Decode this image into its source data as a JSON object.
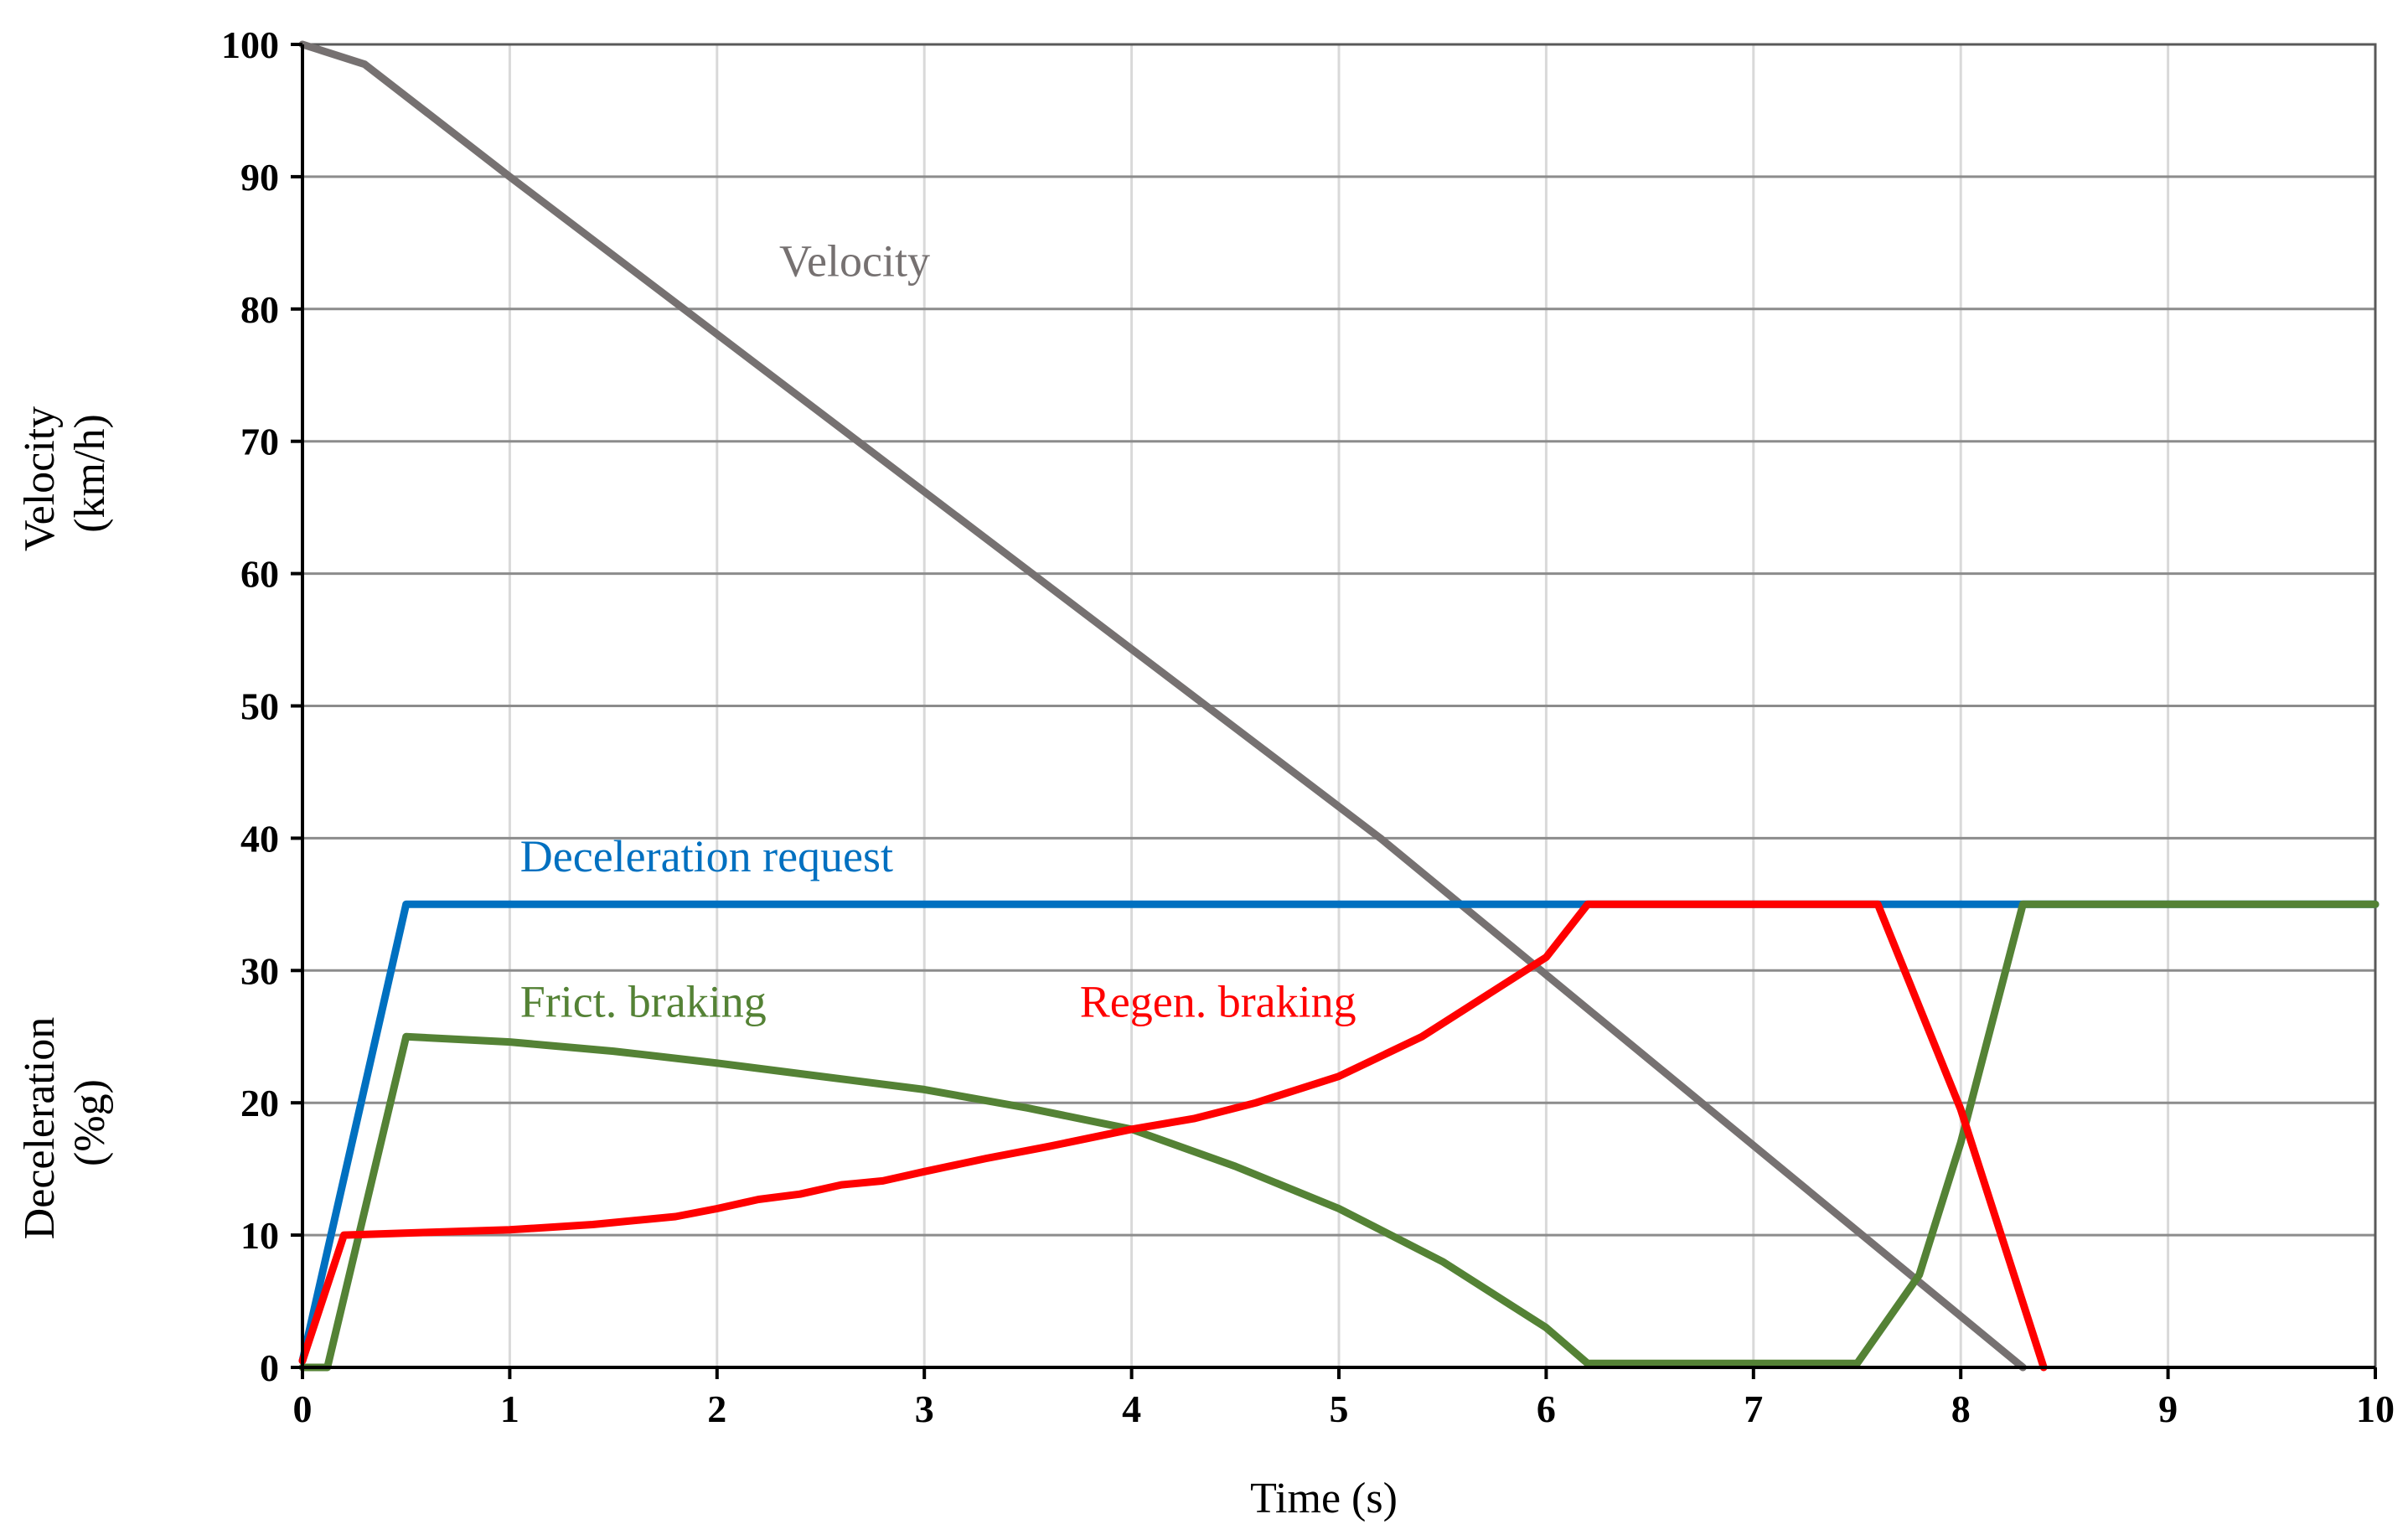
{
  "chart_data": {
    "type": "line",
    "title": "",
    "xlabel": "Time (s)",
    "ylabel_upper": [
      "Velocity",
      "(km/h)"
    ],
    "ylabel_lower": [
      "Deceleration",
      "(%g)"
    ],
    "xlim": [
      0,
      10
    ],
    "ylim": [
      0,
      100
    ],
    "xticks": [
      "0",
      "1",
      "2",
      "3",
      "4",
      "5",
      "6",
      "7",
      "8",
      "9",
      "10"
    ],
    "yticks": [
      "0",
      "10",
      "20",
      "30",
      "40",
      "50",
      "60",
      "70",
      "80",
      "90",
      "100"
    ],
    "grid": true,
    "legend": "inline labels",
    "series": [
      {
        "name": "Velocity",
        "color": "#767171",
        "points": [
          [
            0,
            100
          ],
          [
            0.3,
            98.5
          ],
          [
            1,
            90
          ],
          [
            5.2,
            40
          ],
          [
            8.3,
            0
          ]
        ]
      },
      {
        "name": "Deceleration request",
        "color": "#0070c0",
        "points": [
          [
            0,
            0.5
          ],
          [
            0.5,
            35
          ],
          [
            8.3,
            35
          ],
          [
            10,
            35
          ]
        ]
      },
      {
        "name": "Frict. braking",
        "color": "#548235",
        "points": [
          [
            0,
            0
          ],
          [
            0.12,
            0
          ],
          [
            0.5,
            25
          ],
          [
            1,
            24.6
          ],
          [
            1.5,
            23.9
          ],
          [
            2,
            23
          ],
          [
            2.5,
            22
          ],
          [
            3,
            21
          ],
          [
            3.5,
            19.6
          ],
          [
            4,
            18
          ],
          [
            4.5,
            15.2
          ],
          [
            5,
            12
          ],
          [
            5.5,
            8
          ],
          [
            6,
            3
          ],
          [
            6.2,
            0.3
          ],
          [
            7.5,
            0.3
          ],
          [
            7.8,
            7
          ],
          [
            8,
            17
          ],
          [
            8.3,
            35
          ],
          [
            10,
            35
          ]
        ]
      },
      {
        "name": "Regen. braking",
        "color": "#ff0000",
        "points": [
          [
            0,
            0.5
          ],
          [
            0.2,
            10
          ],
          [
            0.6,
            10.2
          ],
          [
            1,
            10.4
          ],
          [
            1.4,
            10.8
          ],
          [
            1.8,
            11.4
          ],
          [
            2,
            12
          ],
          [
            2.2,
            12.7
          ],
          [
            2.4,
            13.1
          ],
          [
            2.6,
            13.8
          ],
          [
            2.8,
            14.1
          ],
          [
            3,
            14.8
          ],
          [
            3.3,
            15.8
          ],
          [
            3.6,
            16.7
          ],
          [
            4,
            18
          ],
          [
            4.3,
            18.8
          ],
          [
            4.6,
            20
          ],
          [
            5,
            22
          ],
          [
            5.4,
            25
          ],
          [
            5.7,
            28
          ],
          [
            6,
            31
          ],
          [
            6.2,
            35
          ],
          [
            7.6,
            35
          ],
          [
            8,
            19.5
          ],
          [
            8.4,
            0
          ]
        ]
      }
    ],
    "annotations": [
      {
        "text": "Velocity",
        "series": "Velocity",
        "x": 2.3,
        "y": 82.5
      },
      {
        "text": "Deceleration request",
        "series": "Deceleration request",
        "x": 1.05,
        "y": 37.5
      },
      {
        "text": "Frict. braking",
        "series": "Frict. braking",
        "x": 1.05,
        "y": 26.5
      },
      {
        "text": "Regen. braking",
        "series": "Regen. braking",
        "x": 3.75,
        "y": 26.5
      }
    ]
  }
}
